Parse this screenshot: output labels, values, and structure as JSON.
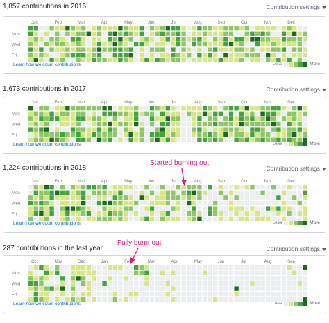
{
  "colors": {
    "levels": [
      "#ebedf0",
      "#d6e685",
      "#8cc665",
      "#44a340",
      "#1e6823"
    ],
    "annotation": "#d81b87",
    "link": "#0366d6"
  },
  "common": {
    "settings_label": "Contribution settings",
    "learn_link": "Learn how we count contributions.",
    "legend_less": "Less",
    "legend_more": "More",
    "day_labels": [
      "Mon",
      "Wed",
      "Fri"
    ]
  },
  "panels": [
    {
      "title": "1,857 contributions in 2016",
      "months": [
        "Jan",
        "Feb",
        "Mar",
        "Apr",
        "May",
        "Jun",
        "Jul",
        "Aug",
        "Sep",
        "Oct",
        "Nov",
        "Dec"
      ],
      "profile": [
        3,
        3,
        3,
        2,
        3,
        3,
        3,
        2,
        3,
        3,
        2,
        2,
        3,
        3,
        2,
        3,
        3,
        3,
        3,
        3,
        2,
        3,
        2,
        2,
        2,
        3,
        2,
        2,
        3,
        3,
        1,
        2,
        3,
        3,
        3,
        3,
        2,
        3,
        3,
        2,
        3,
        3,
        3,
        3,
        3,
        3,
        2,
        3,
        3,
        2,
        3,
        3,
        2
      ]
    },
    {
      "title": "1,673 contributions in 2017",
      "months": [
        "Jan",
        "Feb",
        "Mar",
        "Apr",
        "May",
        "Jun",
        "Jul",
        "Aug",
        "Sep",
        "Oct",
        "Nov",
        "Dec"
      ],
      "profile": [
        3,
        3,
        3,
        3,
        3,
        3,
        3,
        3,
        3,
        3,
        3,
        2,
        3,
        3,
        3,
        3,
        3,
        2,
        2,
        3,
        3,
        2,
        1,
        3,
        3,
        3,
        3,
        3,
        2,
        1,
        1,
        2,
        3,
        3,
        3,
        3,
        3,
        3,
        3,
        3,
        3,
        3,
        3,
        3,
        3,
        3,
        3,
        3,
        2,
        3,
        3,
        3,
        2
      ]
    },
    {
      "title": "1,224 contributions in 2018",
      "months": [
        "Jan",
        "Feb",
        "Mar",
        "Apr",
        "May",
        "Jun",
        "Jul",
        "Aug",
        "Sep",
        "Oct",
        "Nov",
        "Dec"
      ],
      "profile": [
        3,
        3,
        3,
        3,
        3,
        3,
        3,
        3,
        3,
        2,
        3,
        3,
        2,
        3,
        3,
        3,
        2,
        2,
        2,
        2,
        1,
        2,
        2,
        3,
        2,
        2,
        2,
        2,
        2,
        2,
        2,
        3,
        3,
        1,
        1,
        1,
        1,
        1,
        1,
        1,
        1,
        1,
        1,
        1,
        1,
        1,
        1,
        1,
        1,
        1,
        1,
        1,
        1
      ],
      "annotation": "Started burning out"
    },
    {
      "title": "287 contributions in the last year",
      "months": [
        "Oct",
        "Nov",
        "Dec",
        "Jan",
        "Feb",
        "Mar",
        "Apr",
        "May",
        "Jun",
        "Jul",
        "Aug",
        "Sep"
      ],
      "profile": [
        2,
        2,
        2,
        2,
        2,
        2,
        2,
        2,
        2,
        2,
        2,
        1,
        1,
        1,
        1,
        1,
        1,
        1,
        1,
        1,
        1,
        1,
        1,
        0,
        0,
        0,
        0,
        0,
        0,
        0,
        0,
        0,
        0,
        0,
        0,
        0,
        0,
        0,
        0,
        0,
        0,
        0,
        0,
        0,
        0,
        0,
        0,
        0,
        0,
        0,
        0,
        0,
        0
      ],
      "annotation": "Fully burnt out"
    }
  ]
}
